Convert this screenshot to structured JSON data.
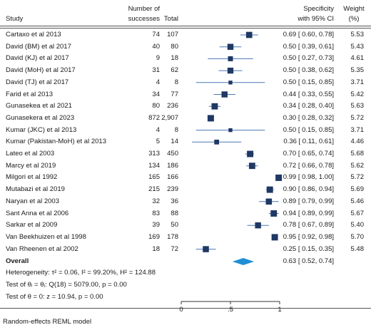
{
  "header": {
    "study": "Study",
    "successes_line1": "Number of",
    "successes_line2": "successes",
    "total": "Total",
    "spec_line1": "Specificity",
    "spec_line2": "with 95% CI",
    "weight_line1": "Weight",
    "weight_line2": "(%)"
  },
  "rows": [
    {
      "study": "Cartaxo et al 2013",
      "successes": "74",
      "total": "107",
      "ci_text": "0.69 [ 0.60, 0.78]",
      "weight": "5.53"
    },
    {
      "study": "David (BM) et al 2017",
      "successes": "40",
      "total": "80",
      "ci_text": "0.50 [ 0.39, 0.61]",
      "weight": "5.43"
    },
    {
      "study": "David (KJ) et al 2017",
      "successes": "9",
      "total": "18",
      "ci_text": "0.50 [ 0.27, 0.73]",
      "weight": "4.61"
    },
    {
      "study": "David (MoH) et al 2017",
      "successes": "31",
      "total": "62",
      "ci_text": "0.50 [ 0.38, 0.62]",
      "weight": "5.35"
    },
    {
      "study": "David (TJ) et al 2017",
      "successes": "4",
      "total": "8",
      "ci_text": "0.50 [ 0.15, 0.85]",
      "weight": "3.71"
    },
    {
      "study": "Farid et al 2013",
      "successes": "34",
      "total": "77",
      "ci_text": "0.44 [ 0.33, 0.55]",
      "weight": "5.42"
    },
    {
      "study": "Gunasekea et al 2021",
      "successes": "80",
      "total": "236",
      "ci_text": "0.34 [ 0.28, 0.40]",
      "weight": "5.63"
    },
    {
      "study": "Gunasekera et al 2023",
      "successes": "872",
      "total": "2,907",
      "ci_text": "0.30 [ 0.28, 0.32]",
      "weight": "5.72"
    },
    {
      "study": "Kumar (JKC) et al 2013",
      "successes": "4",
      "total": "8",
      "ci_text": "0.50 [ 0.15, 0.85]",
      "weight": "3.71"
    },
    {
      "study": "Kumar (Pakistan-MoH) et al 2013",
      "successes": "5",
      "total": "14",
      "ci_text": "0.36 [ 0.11, 0.61]",
      "weight": "4.46"
    },
    {
      "study": "Lateo et al 2003",
      "successes": "313",
      "total": "450",
      "ci_text": "0.70 [ 0.65, 0.74]",
      "weight": "5.68"
    },
    {
      "study": "Marcy et al 2019",
      "successes": "134",
      "total": "186",
      "ci_text": "0.72 [ 0.66, 0.78]",
      "weight": "5.62"
    },
    {
      "study": "Milgori et al 1992",
      "successes": "165",
      "total": "166",
      "ci_text": "0.99 [ 0.98, 1.00]",
      "weight": "5.72"
    },
    {
      "study": "Mutabazi et al 2019",
      "successes": "215",
      "total": "239",
      "ci_text": "0.90 [ 0.86, 0.94]",
      "weight": "5.69"
    },
    {
      "study": "Naryan et al 2003",
      "successes": "32",
      "total": "36",
      "ci_text": "0.89 [ 0.79, 0.99]",
      "weight": "5.46"
    },
    {
      "study": "Sant Anna et al 2006",
      "successes": "83",
      "total": "88",
      "ci_text": "0.94 [ 0.89, 0.99]",
      "weight": "5.67"
    },
    {
      "study": "Sarkar et al 2009",
      "successes": "39",
      "total": "50",
      "ci_text": "0.78 [ 0.67, 0.89]",
      "weight": "5.40"
    },
    {
      "study": "Van Beekhuizen et al 1998",
      "successes": "169",
      "total": "178",
      "ci_text": "0.95 [ 0.92, 0.98]",
      "weight": "5.70"
    },
    {
      "study": "Van Rheenen et al 2002",
      "successes": "18",
      "total": "72",
      "ci_text": "0.25 [ 0.15, 0.35]",
      "weight": "5.48"
    }
  ],
  "overall": {
    "label": "Overall",
    "ci_text": "0.63 [ 0.52, 0.74]"
  },
  "stats": {
    "heterogeneity": "Heterogeneity: τ² = 0.06, I² = 99.20%, H² = 124.88",
    "homogeneity": "Test of θᵢ = θⱼ: Q(18) = 5079.00, p = 0.00",
    "zero_test": "Test of θ = 0: z = 10.94, p = 0.00"
  },
  "footnote": "Random-effects REML model",
  "colors": {
    "marker": "#1f3864",
    "ci_line": "#4a78b5",
    "diamond": "#1f8fd6",
    "axis": "#333333"
  },
  "chart_data": {
    "type": "forest",
    "xlim": [
      0,
      1
    ],
    "xticks": [
      0,
      0.5,
      1
    ],
    "xtick_labels": [
      "0",
      ".5",
      "1"
    ],
    "studies": [
      {
        "name": "Cartaxo et al 2013",
        "estimate": 0.69,
        "lower": 0.6,
        "upper": 0.78,
        "weight": 5.53
      },
      {
        "name": "David (BM) et al 2017",
        "estimate": 0.5,
        "lower": 0.39,
        "upper": 0.61,
        "weight": 5.43
      },
      {
        "name": "David (KJ) et al 2017",
        "estimate": 0.5,
        "lower": 0.27,
        "upper": 0.73,
        "weight": 4.61
      },
      {
        "name": "David (MoH) et al 2017",
        "estimate": 0.5,
        "lower": 0.38,
        "upper": 0.62,
        "weight": 5.35
      },
      {
        "name": "David (TJ) et al 2017",
        "estimate": 0.5,
        "lower": 0.15,
        "upper": 0.85,
        "weight": 3.71
      },
      {
        "name": "Farid et al 2013",
        "estimate": 0.44,
        "lower": 0.33,
        "upper": 0.55,
        "weight": 5.42
      },
      {
        "name": "Gunasekea et al 2021",
        "estimate": 0.34,
        "lower": 0.28,
        "upper": 0.4,
        "weight": 5.63
      },
      {
        "name": "Gunasekera et al 2023",
        "estimate": 0.3,
        "lower": 0.28,
        "upper": 0.32,
        "weight": 5.72
      },
      {
        "name": "Kumar (JKC) et al 2013",
        "estimate": 0.5,
        "lower": 0.15,
        "upper": 0.85,
        "weight": 3.71
      },
      {
        "name": "Kumar (Pakistan-MoH) et al 2013",
        "estimate": 0.36,
        "lower": 0.11,
        "upper": 0.61,
        "weight": 4.46
      },
      {
        "name": "Lateo et al 2003",
        "estimate": 0.7,
        "lower": 0.65,
        "upper": 0.74,
        "weight": 5.68
      },
      {
        "name": "Marcy et al 2019",
        "estimate": 0.72,
        "lower": 0.66,
        "upper": 0.78,
        "weight": 5.62
      },
      {
        "name": "Milgori et al 1992",
        "estimate": 0.99,
        "lower": 0.98,
        "upper": 1.0,
        "weight": 5.72
      },
      {
        "name": "Mutabazi et al 2019",
        "estimate": 0.9,
        "lower": 0.86,
        "upper": 0.94,
        "weight": 5.69
      },
      {
        "name": "Naryan et al 2003",
        "estimate": 0.89,
        "lower": 0.79,
        "upper": 0.99,
        "weight": 5.46
      },
      {
        "name": "Sant Anna et al 2006",
        "estimate": 0.94,
        "lower": 0.89,
        "upper": 0.99,
        "weight": 5.67
      },
      {
        "name": "Sarkar et al 2009",
        "estimate": 0.78,
        "lower": 0.67,
        "upper": 0.89,
        "weight": 5.4
      },
      {
        "name": "Van Beekhuizen et al 1998",
        "estimate": 0.95,
        "lower": 0.92,
        "upper": 0.98,
        "weight": 5.7
      },
      {
        "name": "Van Rheenen et al 2002",
        "estimate": 0.25,
        "lower": 0.15,
        "upper": 0.35,
        "weight": 5.48
      }
    ],
    "overall": {
      "estimate": 0.63,
      "lower": 0.52,
      "upper": 0.74
    }
  }
}
